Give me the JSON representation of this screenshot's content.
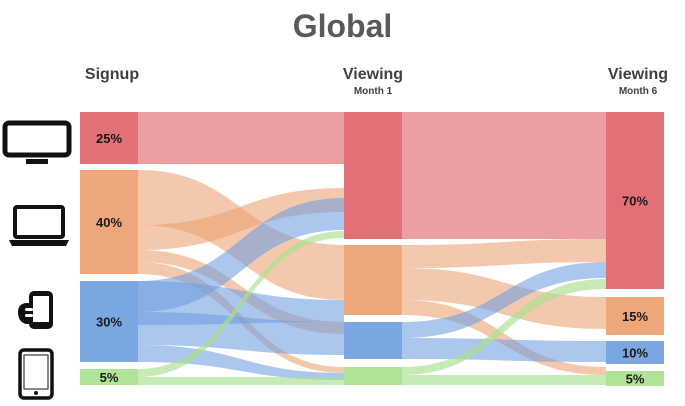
{
  "title": "Global",
  "columns": {
    "signup": {
      "label": "Signup",
      "sub": ""
    },
    "month1": {
      "label": "Viewing",
      "sub": "Month 1"
    },
    "month6": {
      "label": "Viewing",
      "sub": "Month 6"
    }
  },
  "devices": [
    "tv-icon",
    "laptop-icon",
    "phone-icon",
    "tablet-icon"
  ],
  "colors": {
    "tv": "#e0646a",
    "laptop": "#eca070",
    "phone": "#6f9fe0",
    "tablet": "#a9e08f"
  },
  "nodes": {
    "signup": [
      {
        "device": "tv",
        "label": "25%",
        "value": 25
      },
      {
        "device": "laptop",
        "label": "40%",
        "value": 40
      },
      {
        "device": "phone",
        "label": "30%",
        "value": 30
      },
      {
        "device": "tablet",
        "label": "5%",
        "value": 5
      }
    ],
    "month1": [
      {
        "device": "tv",
        "value": 47
      },
      {
        "device": "laptop",
        "value": 30
      },
      {
        "device": "phone",
        "value": 17
      },
      {
        "device": "tablet",
        "value": 6
      }
    ],
    "month6": [
      {
        "device": "tv",
        "label": "70%",
        "value": 70
      },
      {
        "device": "laptop",
        "label": "15%",
        "value": 15
      },
      {
        "device": "phone",
        "label": "10%",
        "value": 10
      },
      {
        "device": "tablet",
        "label": "5%",
        "value": 5
      }
    ]
  }
}
